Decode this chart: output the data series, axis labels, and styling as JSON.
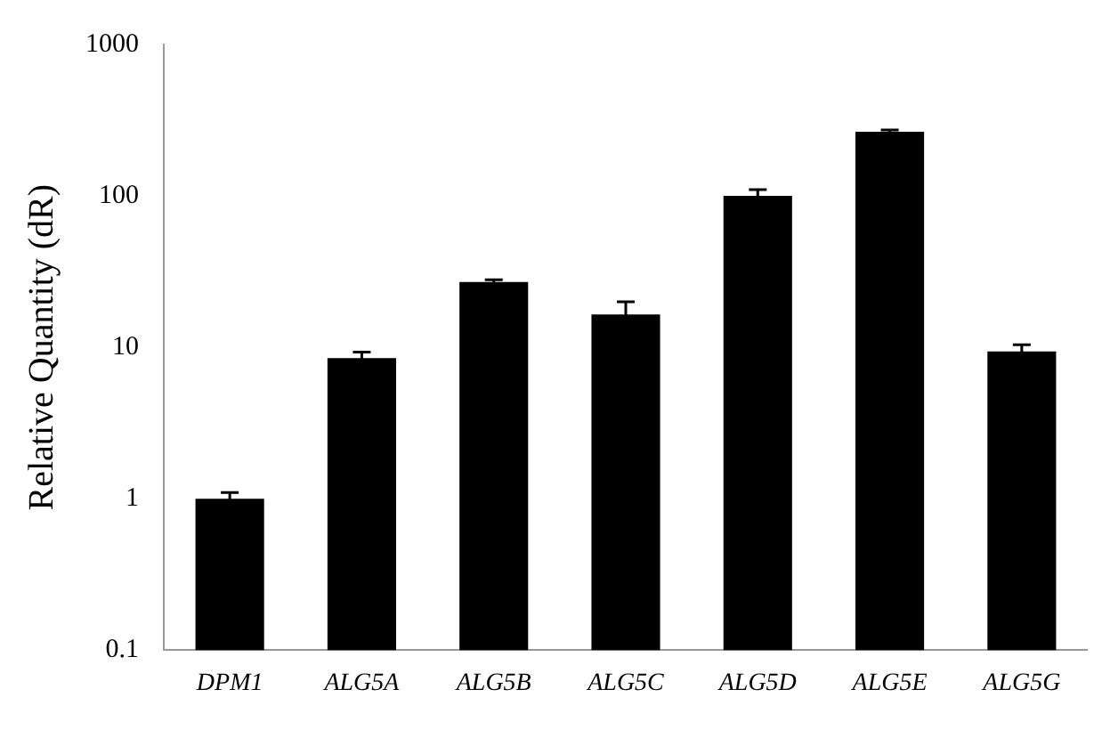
{
  "chart_data": {
    "type": "bar",
    "ylabel": "Relative Quantity (dR)",
    "categories": [
      "DPM1",
      "ALG5A",
      "ALG5B",
      "ALG5C",
      "ALG5D",
      "ALG5E",
      "ALG5G"
    ],
    "values": [
      1.0,
      8.5,
      27,
      16.5,
      100,
      265,
      9.4
    ],
    "errors": [
      0.1,
      0.8,
      1,
      3.5,
      10,
      8,
      1
    ],
    "color": "#000000",
    "log": true,
    "ylim": [
      0.1,
      1000
    ],
    "yticks": [
      0.1,
      1,
      10,
      100,
      1000
    ],
    "grid": false,
    "legend": false
  }
}
